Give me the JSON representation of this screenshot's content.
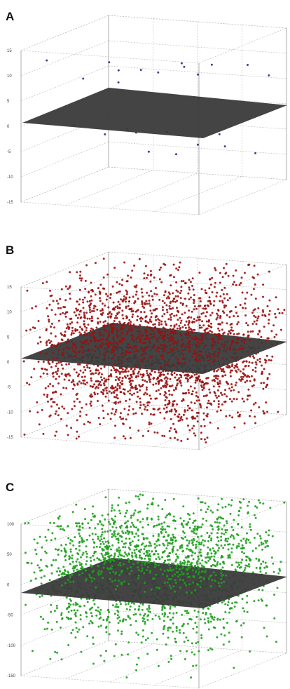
{
  "figure": {
    "panels": [
      {
        "label": "A"
      },
      {
        "label": "B"
      },
      {
        "label": "C"
      }
    ]
  },
  "chart_data": [
    {
      "type": "scatter",
      "subtype": "3d-scatter-with-plane",
      "panel": "A",
      "point_color": "#2b2b8c",
      "plane_color": "#3a3a3a",
      "grid": true,
      "yticks": [
        "15",
        "10",
        "5",
        "0",
        "-5",
        "-10",
        "-15"
      ],
      "zlim": [
        -15,
        15
      ],
      "points": [
        {
          "x": 0.12,
          "y": 0.05,
          "z": 13.0
        },
        {
          "x": 0.3,
          "y": 0.1,
          "z": 9.5
        },
        {
          "x": 0.45,
          "y": 0.2,
          "z": 10.8
        },
        {
          "x": 0.6,
          "y": 0.15,
          "z": 11.6
        },
        {
          "x": 0.78,
          "y": 0.25,
          "z": 12.7
        },
        {
          "x": 0.9,
          "y": 0.35,
          "z": 12.0
        },
        {
          "x": 0.72,
          "y": 0.4,
          "z": 10.8
        },
        {
          "x": 0.5,
          "y": 0.55,
          "z": 8.1
        },
        {
          "x": 0.4,
          "y": 0.3,
          "z": 7.6
        },
        {
          "x": 0.2,
          "y": 0.6,
          "z": 9.0
        },
        {
          "x": 0.65,
          "y": 0.7,
          "z": 7.0
        },
        {
          "x": 0.88,
          "y": 0.8,
          "z": 8.8
        },
        {
          "x": 0.95,
          "y": 0.9,
          "z": 6.2
        },
        {
          "x": 0.15,
          "y": 0.3,
          "z": -1.4
        },
        {
          "x": 0.25,
          "y": 0.45,
          "z": -4.1
        },
        {
          "x": 0.35,
          "y": 0.5,
          "z": -3.2
        },
        {
          "x": 0.45,
          "y": 0.4,
          "z": -2.9
        },
        {
          "x": 0.55,
          "y": 0.55,
          "z": -3.6
        },
        {
          "x": 0.7,
          "y": 0.35,
          "z": -6.2
        },
        {
          "x": 0.82,
          "y": 0.6,
          "z": -3.7
        },
        {
          "x": 0.9,
          "y": 0.5,
          "z": -5.2
        },
        {
          "x": 0.6,
          "y": 0.8,
          "z": -7.7
        },
        {
          "x": 0.3,
          "y": 0.85,
          "z": -10.2
        },
        {
          "x": 0.85,
          "y": 0.95,
          "z": -9.8
        }
      ]
    },
    {
      "type": "scatter",
      "subtype": "3d-scatter-with-plane",
      "panel": "B",
      "point_color": "#9a1010",
      "plane_color": "#3a3a3a",
      "grid": true,
      "yticks": [
        "15",
        "10",
        "5",
        "0",
        "-5",
        "-10",
        "-15"
      ],
      "zlim": [
        -15,
        15
      ],
      "distribution": {
        "n_points": 2400,
        "x_range": [
          0,
          1
        ],
        "y_range": [
          0,
          1
        ],
        "z_mean": 0,
        "z_sd": 7.5
      }
    },
    {
      "type": "scatter",
      "subtype": "3d-scatter-with-plane",
      "panel": "C",
      "point_color": "#1fa01f",
      "plane_color": "#3a3a3a",
      "grid": true,
      "yticks": [
        "100",
        "50",
        "0",
        "-50",
        "-100",
        "-150"
      ],
      "zlim": [
        -150,
        100
      ],
      "distribution": {
        "n_points": 2000,
        "x_range": [
          0,
          1
        ],
        "y_range": [
          0,
          1
        ],
        "z_mean": 5,
        "z_sd": 55
      }
    }
  ]
}
